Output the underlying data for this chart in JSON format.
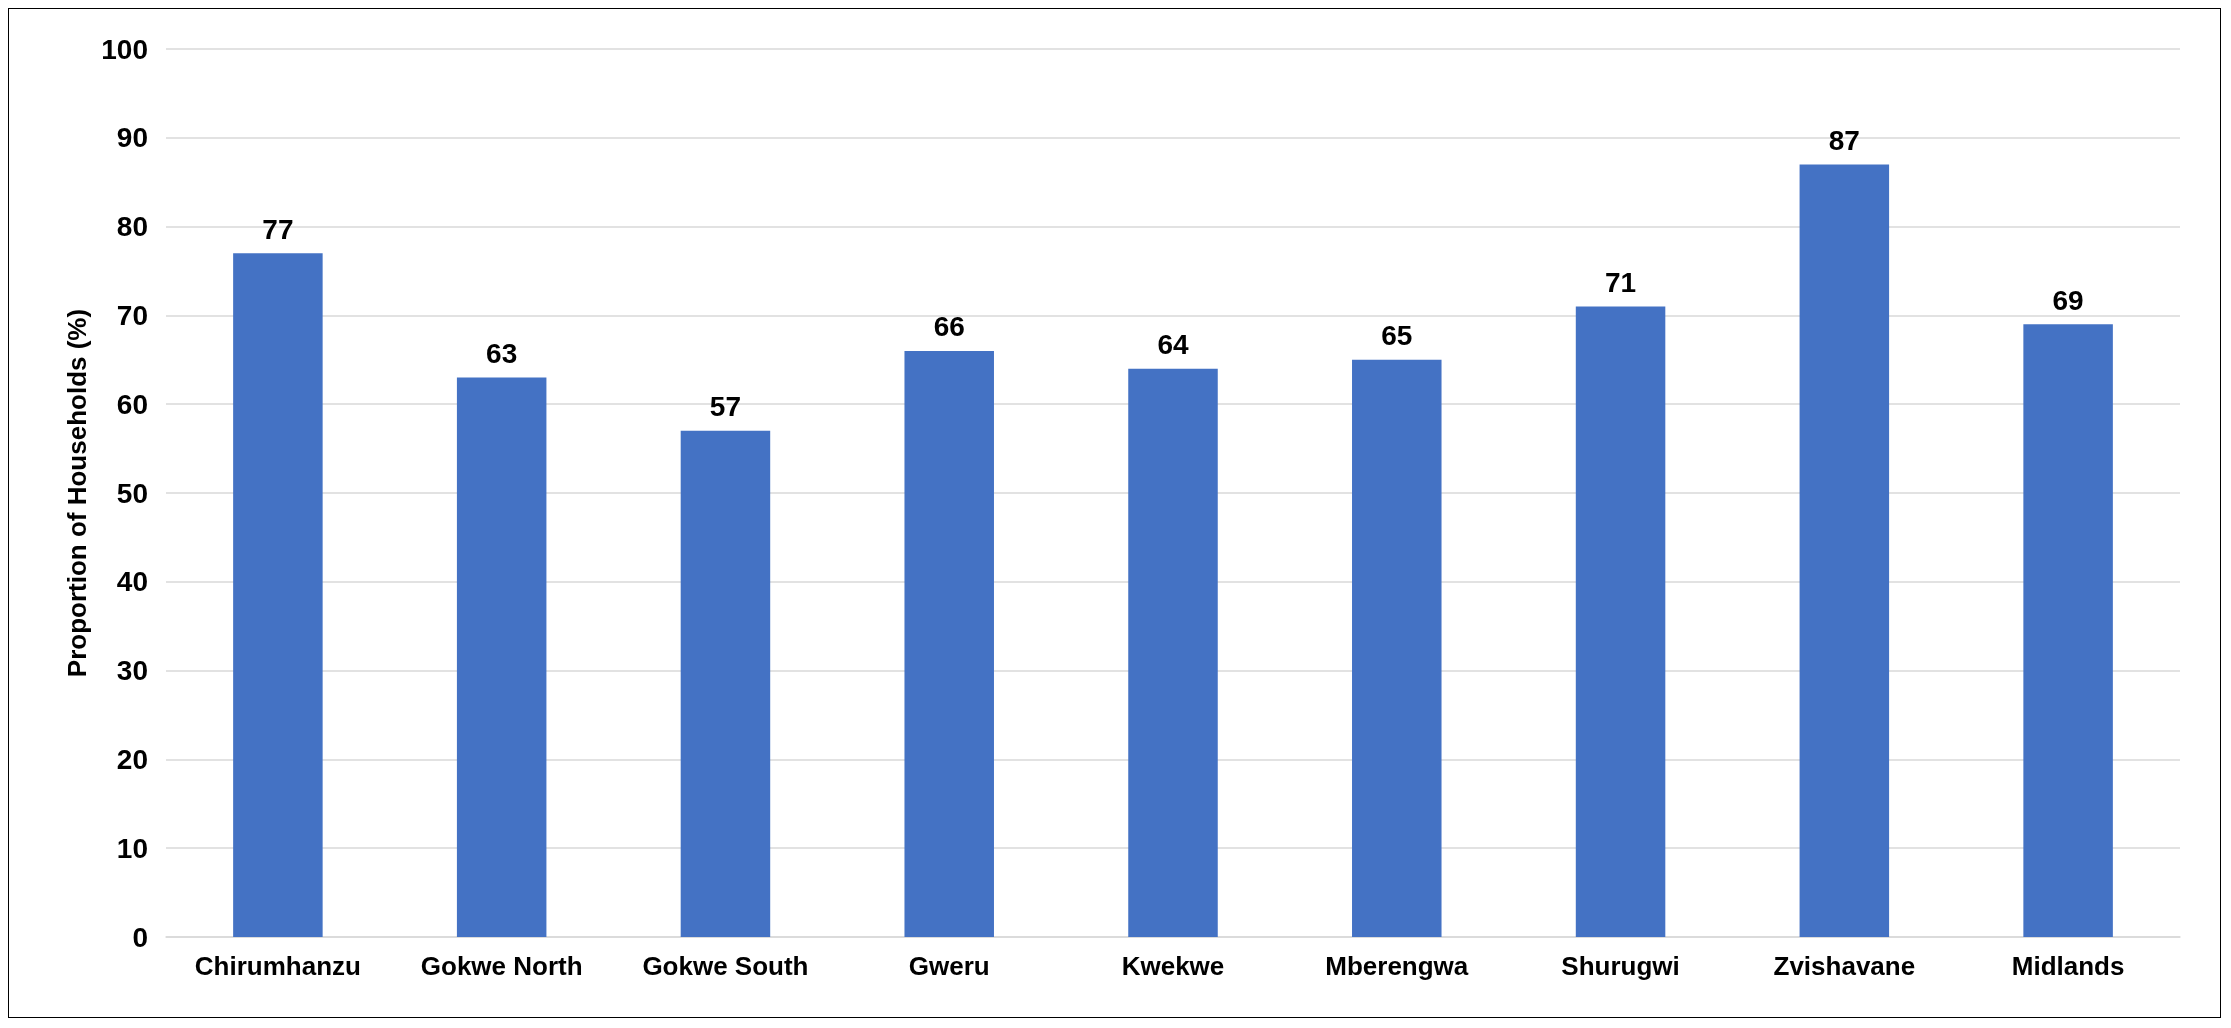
{
  "chart_data": {
    "type": "bar",
    "ylabel": "Proportion of Households (%)",
    "categories": [
      "Chirumhanzu",
      "Gokwe North",
      "Gokwe South",
      "Gweru",
      "Kwekwe",
      "Mberengwa",
      "Shurugwi",
      "Zvishavane",
      "Midlands"
    ],
    "values": [
      77,
      63,
      57,
      66,
      64,
      65,
      71,
      87,
      69
    ],
    "color": "#4472c4",
    "ylim": [
      0,
      100
    ],
    "yticks": [
      0,
      10,
      20,
      30,
      40,
      50,
      60,
      70,
      80,
      90,
      100
    ],
    "grid": "y",
    "data_labels": true
  }
}
